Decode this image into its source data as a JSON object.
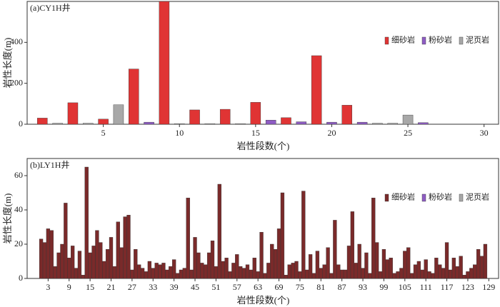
{
  "chart_data": [
    {
      "type": "bar",
      "title": "(a)CY1H井",
      "x_label": "岩性段数(个)",
      "y_label": "岩性长度(m)",
      "xlim": [
        0,
        31
      ],
      "xticks": [
        5,
        10,
        15,
        20,
        25,
        30
      ],
      "ylim": [
        0,
        600
      ],
      "yticks": [
        0,
        200,
        400
      ],
      "legend": "right",
      "series": [
        {
          "name": "细砂岩",
          "color": "#e03434",
          "x": [
            1,
            3,
            5,
            7,
            9,
            11,
            13,
            15,
            17,
            19,
            21
          ],
          "values": [
            30,
            105,
            25,
            270,
            600,
            70,
            73,
            107,
            32,
            335,
            93
          ]
        },
        {
          "name": "粉砂岩",
          "color": "#8e5cc4",
          "x": [
            8,
            16,
            18,
            20,
            22,
            26
          ],
          "values": [
            10,
            20,
            12,
            10,
            10,
            8
          ]
        },
        {
          "name": "泥页岩",
          "color": "#a8a8a8",
          "x": [
            2,
            4,
            6,
            10,
            12,
            14,
            23,
            24,
            25
          ],
          "values": [
            5,
            5,
            95,
            3,
            3,
            3,
            5,
            5,
            45
          ]
        }
      ]
    },
    {
      "type": "bar",
      "title": "(b)LY1H井",
      "x_label": "岩性段数(个)",
      "y_label": "岩性长度(m)",
      "xlim": [
        -3,
        132
      ],
      "xticks": [
        3,
        9,
        15,
        21,
        27,
        33,
        39,
        45,
        51,
        57,
        63,
        69,
        75,
        81,
        87,
        93,
        99,
        105,
        111,
        117,
        123,
        129
      ],
      "ylim": [
        0,
        70
      ],
      "yticks": [
        0,
        20,
        40,
        60
      ],
      "legend": "right",
      "series": [
        {
          "name": "细砂岩",
          "color": "#7a2a2a",
          "x": [
            1,
            2,
            3,
            4,
            5,
            6,
            7,
            8,
            9,
            10,
            11,
            12,
            13,
            14,
            15,
            16,
            17,
            18,
            19,
            20,
            21,
            22,
            23,
            24,
            25,
            26,
            27,
            28,
            29,
            30,
            31,
            32,
            33,
            34,
            35,
            36,
            37,
            38,
            39,
            40,
            41,
            42,
            43,
            44,
            45,
            46,
            47,
            48,
            49,
            50,
            51,
            52,
            53,
            54,
            55,
            56,
            57,
            58,
            59,
            60,
            61,
            62,
            63,
            64,
            65,
            66,
            67,
            68,
            69,
            70,
            71,
            72,
            73,
            74,
            75,
            76,
            77,
            78,
            79,
            80,
            81,
            82,
            83,
            84,
            85,
            86,
            87,
            88,
            89,
            90,
            91,
            92,
            93,
            94,
            95,
            96,
            97,
            98,
            99,
            100,
            101,
            102,
            103,
            104,
            105,
            106,
            107,
            108,
            109,
            110,
            111,
            112,
            113,
            114,
            115,
            116,
            117,
            118,
            119,
            120,
            121,
            122,
            123,
            124,
            125,
            126,
            127,
            128
          ],
          "values": [
            23,
            21,
            29,
            28,
            7,
            15,
            20,
            44,
            12,
            19,
            6,
            16,
            2,
            65,
            15,
            19,
            28,
            21,
            10,
            17,
            24,
            7,
            33,
            18,
            36,
            37,
            5,
            17,
            8,
            6,
            4,
            10,
            6,
            9,
            8,
            9,
            5,
            7,
            11,
            3,
            5,
            6,
            47,
            5,
            24,
            15,
            9,
            8,
            15,
            22,
            7,
            55,
            10,
            12,
            4,
            9,
            14,
            7,
            6,
            8,
            5,
            12,
            4,
            27,
            3,
            9,
            20,
            17,
            29,
            50,
            2,
            8,
            9,
            10,
            4,
            51,
            5,
            14,
            3,
            16,
            6,
            8,
            18,
            3,
            34,
            8,
            5,
            5,
            19,
            39,
            9,
            20,
            6,
            15,
            3,
            47,
            21,
            4,
            17,
            11,
            12,
            3,
            4,
            6,
            16,
            18,
            3,
            8,
            10,
            5,
            11,
            4,
            3,
            12,
            8,
            6,
            21,
            5,
            12,
            7,
            13,
            2,
            4,
            6,
            8,
            17,
            13,
            20
          ]
        },
        {
          "name": "粉砂岩",
          "color": "#8e5cc4",
          "x": [],
          "values": []
        },
        {
          "name": "泥页岩",
          "color": "#a8a8a8",
          "x": [],
          "values": []
        }
      ]
    }
  ]
}
